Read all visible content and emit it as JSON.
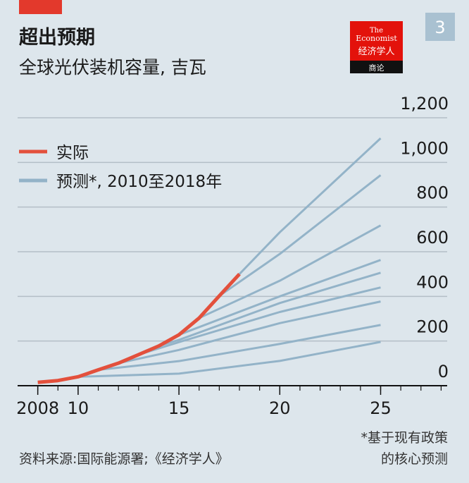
{
  "badge": "3",
  "logo": {
    "lines": [
      "The",
      "Economist",
      "经济学人"
    ],
    "sub": "商论"
  },
  "chart_data": {
    "type": "line",
    "title": "超出预期",
    "subtitle": "全球光伏装机容量, 吉瓦",
    "xlim": [
      2007,
      2028.3
    ],
    "xticks": [
      2008,
      {
        "value": 2010,
        "label": "10"
      },
      {
        "value": 2015,
        "label": "15"
      },
      {
        "value": 2020,
        "label": "20"
      },
      {
        "value": 2025,
        "label": "25"
      }
    ],
    "ylim": [
      0,
      1200
    ],
    "yticks": [
      0,
      200,
      400,
      600,
      800,
      {
        "value": 1000,
        "label": "1,000"
      },
      {
        "value": 1200,
        "label": "1,200"
      }
    ],
    "grid": true,
    "series": [
      {
        "name": "实际",
        "color": "#e3503c",
        "x": [
          2008,
          2009,
          2010,
          2011,
          2012,
          2013,
          2014,
          2015,
          2016,
          2017,
          2018
        ],
        "values": [
          15,
          23,
          40,
          71,
          101,
          139,
          178,
          228,
          303,
          402,
          500
        ]
      }
    ],
    "forecast": {
      "name": "预测*, 2010至2018年",
      "color": "#93b3c8",
      "lines": [
        {
          "x": [
            2010,
            2015,
            2020,
            2025
          ],
          "values": [
            40,
            54,
            111,
            196
          ]
        },
        {
          "x": [
            2011,
            2015,
            2020,
            2025
          ],
          "values": [
            71,
            110,
            187,
            272
          ]
        },
        {
          "x": [
            2012,
            2015,
            2020,
            2025
          ],
          "values": [
            101,
            160,
            280,
            377
          ]
        },
        {
          "x": [
            2013,
            2015,
            2020,
            2025
          ],
          "values": [
            139,
            195,
            330,
            440
          ]
        },
        {
          "x": [
            2014,
            2015,
            2020,
            2025
          ],
          "values": [
            178,
            205,
            370,
            506
          ]
        },
        {
          "x": [
            2015,
            2020,
            2025
          ],
          "values": [
            228,
            400,
            563
          ]
        },
        {
          "x": [
            2016,
            2020,
            2025
          ],
          "values": [
            303,
            470,
            718
          ]
        },
        {
          "x": [
            2017,
            2020,
            2025
          ],
          "values": [
            402,
            590,
            943
          ]
        },
        {
          "x": [
            2018,
            2020,
            2025
          ],
          "values": [
            500,
            687,
            1108
          ]
        }
      ]
    },
    "source": "资料来源:国际能源署;《经济学人》",
    "footnote": [
      "*基于现有政策",
      "的核心预测"
    ]
  }
}
